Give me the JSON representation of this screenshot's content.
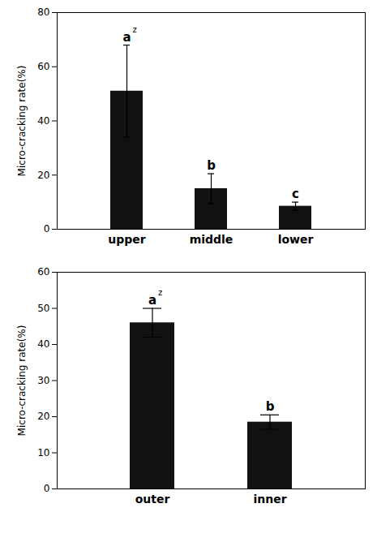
{
  "chart_data": [
    {
      "type": "bar",
      "categories": [
        "upper",
        "middle",
        "lower"
      ],
      "values": [
        51.0,
        15.0,
        8.5
      ],
      "errors": [
        17.0,
        5.5,
        1.5
      ],
      "labels": [
        "a",
        "b",
        "c"
      ],
      "label_superscripts": [
        "z",
        null,
        null
      ],
      "color": "#111111",
      "ylim": [
        0,
        80
      ],
      "yticks": [
        0,
        20,
        40,
        60,
        80
      ],
      "ylabel": "Micro-cracking rate(%)",
      "grid": false
    },
    {
      "type": "bar",
      "categories": [
        "outer",
        "inner"
      ],
      "values": [
        46.0,
        18.5
      ],
      "errors": [
        4.0,
        2.0
      ],
      "labels": [
        "a",
        "b"
      ],
      "label_superscripts": [
        "z",
        null
      ],
      "color": "#111111",
      "ylim": [
        0,
        60
      ],
      "yticks": [
        0,
        10,
        20,
        30,
        40,
        50,
        60
      ],
      "ylabel": "Micro-cracking rate(%)",
      "grid": false
    }
  ]
}
